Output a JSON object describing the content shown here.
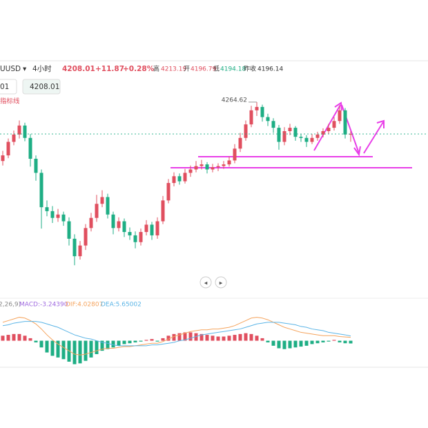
{
  "header": {
    "symbol": "UUSD",
    "period": "4小时",
    "price": "4208.01",
    "change": "+11.87",
    "change_pct": "+0.28%",
    "high_label": "高",
    "high": "4213.19",
    "open_label": "开",
    "open": "4196.79",
    "low_label": "低",
    "low": "4194.18",
    "prev_label": "昨收",
    "prev": "4196.14",
    "input_left": "01",
    "input_price": "4208.01",
    "indicator": "指标线"
  },
  "chart_data": [
    {
      "type": "candlestick",
      "annotation": "4264.62",
      "up_color": "#e04f5f",
      "down_color": "#1eae84",
      "ylim": [
        3925,
        4338
      ],
      "ohlc": [
        [
          4160,
          4178,
          4152,
          4170
        ],
        [
          4170,
          4200,
          4165,
          4194
        ],
        [
          4194,
          4214,
          4188,
          4207
        ],
        [
          4207,
          4232,
          4200,
          4223
        ],
        [
          4223,
          4228,
          4195,
          4201
        ],
        [
          4201,
          4208,
          4150,
          4164
        ],
        [
          4164,
          4170,
          4125,
          4139
        ],
        [
          4139,
          4145,
          4040,
          4078
        ],
        [
          4078,
          4090,
          4062,
          4071
        ],
        [
          4071,
          4080,
          4050,
          4059
        ],
        [
          4059,
          4075,
          4052,
          4065
        ],
        [
          4065,
          4070,
          4045,
          4053
        ],
        [
          4053,
          4060,
          4010,
          4022
        ],
        [
          4022,
          4030,
          3975,
          3991
        ],
        [
          3991,
          4018,
          3985,
          4010
        ],
        [
          4010,
          4048,
          4002,
          4041
        ],
        [
          4041,
          4068,
          4035,
          4059
        ],
        [
          4059,
          4100,
          4052,
          4084
        ],
        [
          4084,
          4108,
          4078,
          4096
        ],
        [
          4096,
          4102,
          4058,
          4065
        ],
        [
          4065,
          4070,
          4030,
          4041
        ],
        [
          4041,
          4060,
          4035,
          4053
        ],
        [
          4053,
          4058,
          4025,
          4034
        ],
        [
          4034,
          4042,
          4020,
          4028
        ],
        [
          4028,
          4035,
          4005,
          4016
        ],
        [
          4016,
          4040,
          4010,
          4034
        ],
        [
          4034,
          4055,
          4028,
          4047
        ],
        [
          4047,
          4052,
          4020,
          4028
        ],
        [
          4028,
          4060,
          4022,
          4053
        ],
        [
          4053,
          4098,
          4048,
          4090
        ],
        [
          4090,
          4128,
          4085,
          4121
        ],
        [
          4121,
          4140,
          4115,
          4133
        ],
        [
          4133,
          4138,
          4118,
          4124
        ],
        [
          4124,
          4146,
          4120,
          4139
        ],
        [
          4139,
          4152,
          4132,
          4145
        ],
        [
          4145,
          4160,
          4140,
          4151
        ],
        [
          4151,
          4162,
          4145,
          4154
        ],
        [
          4154,
          4158,
          4138,
          4145
        ],
        [
          4145,
          4155,
          4140,
          4149
        ],
        [
          4149,
          4156,
          4142,
          4151
        ],
        [
          4151,
          4160,
          4146,
          4154
        ],
        [
          4154,
          4168,
          4150,
          4161
        ],
        [
          4161,
          4190,
          4156,
          4182
        ],
        [
          4182,
          4210,
          4176,
          4201
        ],
        [
          4201,
          4232,
          4196,
          4225
        ],
        [
          4225,
          4258,
          4220,
          4250
        ],
        [
          4250,
          4264.62,
          4240,
          4256
        ],
        [
          4256,
          4260,
          4230,
          4238
        ],
        [
          4238,
          4244,
          4222,
          4231
        ],
        [
          4231,
          4236,
          4210,
          4219
        ],
        [
          4219,
          4224,
          4180,
          4194
        ],
        [
          4194,
          4220,
          4188,
          4213
        ],
        [
          4213,
          4226,
          4206,
          4219
        ],
        [
          4219,
          4222,
          4196,
          4203
        ],
        [
          4203,
          4208,
          4194,
          4201
        ],
        [
          4201,
          4206,
          4185,
          4194
        ],
        [
          4194,
          4208,
          4190,
          4201
        ],
        [
          4201,
          4212,
          4196,
          4207
        ],
        [
          4207,
          4218,
          4202,
          4213
        ],
        [
          4213,
          4226,
          4208,
          4219
        ],
        [
          4219,
          4238,
          4214,
          4231
        ],
        [
          4231,
          4258,
          4226,
          4250
        ],
        [
          4250,
          4254,
          4200,
          4207
        ],
        [
          4207,
          4213.19,
          4194.18,
          4208.01
        ]
      ]
    },
    {
      "type": "macd",
      "params": "2,26,9)",
      "macd_label": "MACD:-3.24390",
      "dif_label": "DIF:4.02807",
      "dea_label": "DEA:5.65002",
      "ylim": [
        -30,
        40
      ],
      "up_color": "#e04f5f",
      "down_color": "#1eae84",
      "series": [
        {
          "name": "MACD",
          "values": [
            6,
            7,
            8,
            8,
            6,
            3,
            -2,
            -8,
            -14,
            -18,
            -20,
            -22,
            -25,
            -28,
            -27,
            -24,
            -20,
            -16,
            -12,
            -10,
            -8,
            -6,
            -4,
            -3,
            -2,
            -1,
            1,
            2,
            -1,
            3,
            6,
            8,
            9,
            10,
            10,
            9,
            8,
            7,
            6,
            5,
            5,
            6,
            7,
            8,
            9,
            8,
            6,
            3,
            -2,
            -6,
            -9,
            -10,
            -9,
            -8,
            -7,
            -6,
            -4,
            -3,
            -2,
            -1,
            1,
            -2,
            -3,
            -3.24
          ]
        },
        {
          "name": "DIF",
          "color": "#f5a35c",
          "values": [
            22,
            24,
            26,
            28,
            27,
            24,
            20,
            14,
            7,
            1,
            -4,
            -8,
            -12,
            -16,
            -17,
            -16,
            -14,
            -12,
            -10,
            -9,
            -9,
            -8,
            -7,
            -7,
            -6,
            -5,
            -4,
            -3,
            -3,
            -1,
            2,
            5,
            7,
            9,
            11,
            12,
            13,
            13,
            14,
            14,
            15,
            16,
            18,
            21,
            24,
            27,
            28,
            27,
            25,
            22,
            19,
            16,
            14,
            12,
            10,
            9,
            8,
            7,
            6,
            6,
            6,
            5,
            4.5,
            4.03
          ]
        },
        {
          "name": "DEA",
          "color": "#5ab4e6",
          "values": [
            18,
            19,
            21,
            22,
            23,
            23,
            23,
            22,
            20,
            18,
            16,
            13,
            10,
            7,
            5,
            3,
            2,
            0,
            -2,
            -3,
            -5,
            -6,
            -6,
            -6,
            -6,
            -6,
            -6,
            -5,
            -5,
            -4,
            -3,
            -2,
            0,
            1,
            3,
            5,
            7,
            8,
            9,
            10,
            11,
            12,
            13,
            14,
            16,
            18,
            20,
            21,
            22,
            22,
            22,
            21,
            20,
            19,
            17,
            16,
            14,
            13,
            12,
            10,
            9,
            8,
            7,
            5.65
          ]
        }
      ]
    }
  ]
}
